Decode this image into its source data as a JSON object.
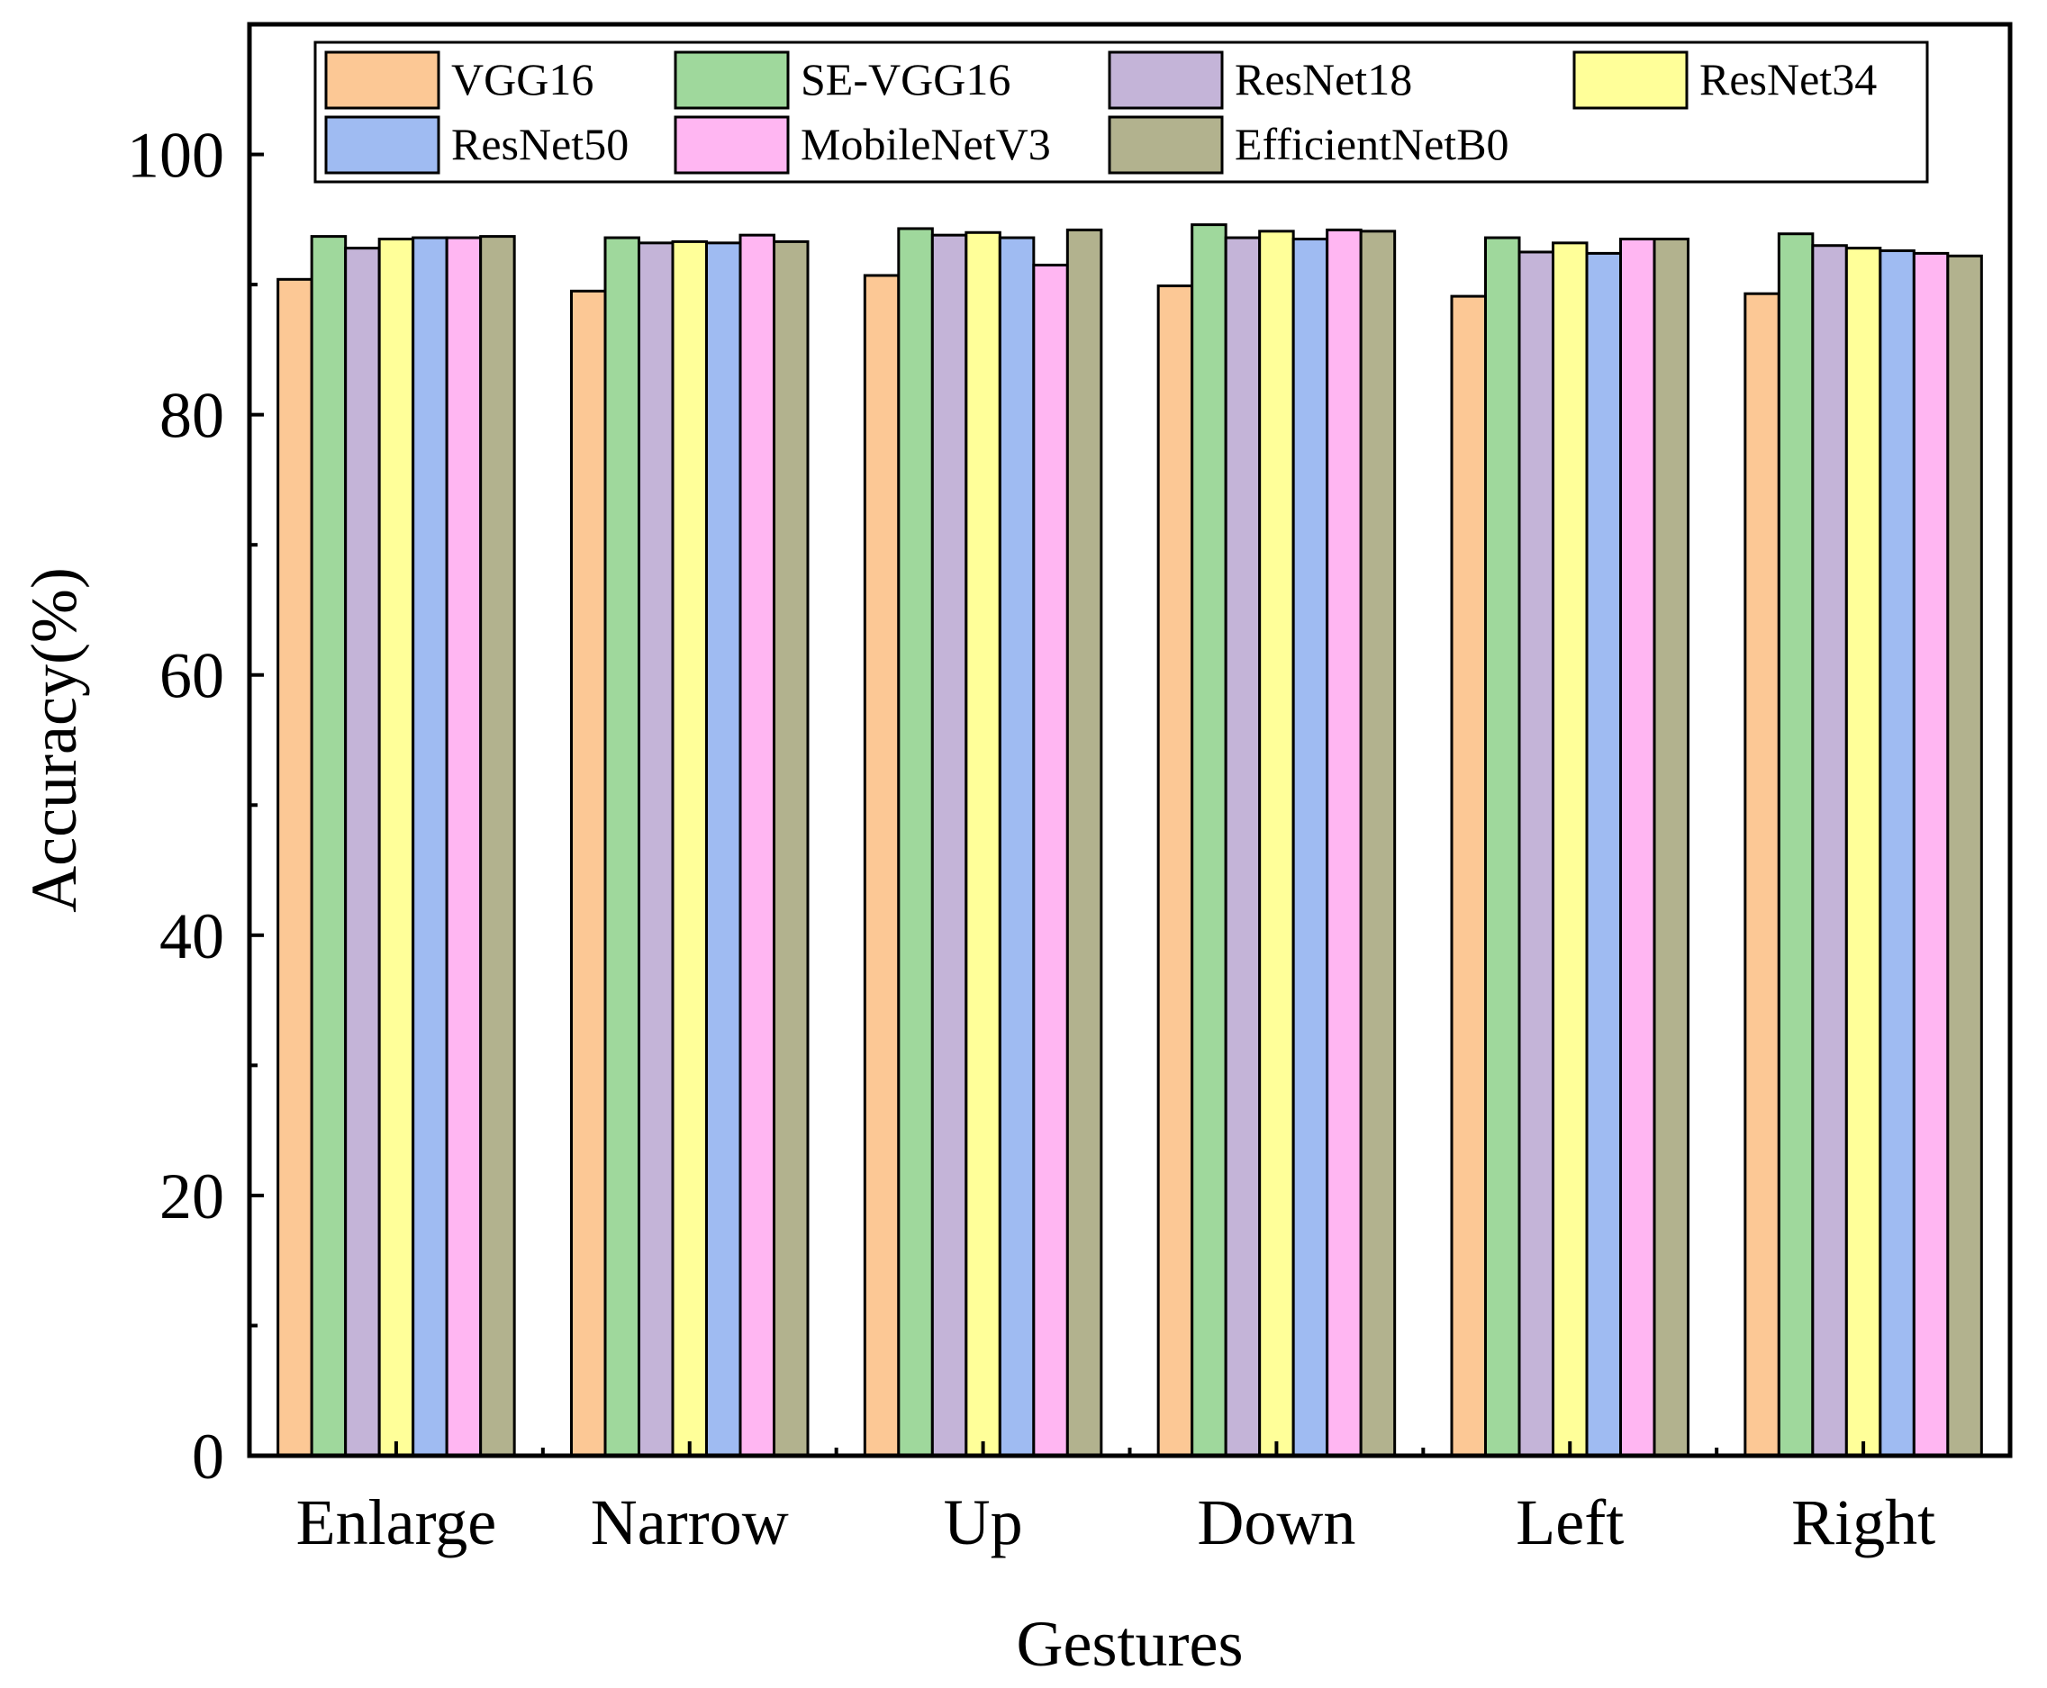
{
  "chart_data": {
    "type": "bar",
    "title": "",
    "xlabel": "Gestures",
    "ylabel": "Accuracy(%)",
    "ylim": [
      0,
      110
    ],
    "yticks": [
      0,
      20,
      40,
      60,
      80,
      100
    ],
    "ytick_labels": [
      "0",
      "20",
      "40",
      "60",
      "80",
      "100"
    ],
    "categories": [
      "Enlarge",
      "Narrow",
      "Up",
      "Down",
      "Left",
      "Right"
    ],
    "legend_position": "top",
    "series": [
      {
        "name": "VGG16",
        "color": "#FCC895",
        "values": [
          90.4,
          89.5,
          90.7,
          89.9,
          89.1,
          89.3
        ]
      },
      {
        "name": "SE-VGG16",
        "color": "#9FD89C",
        "values": [
          93.7,
          93.6,
          94.3,
          94.6,
          93.6,
          93.9
        ]
      },
      {
        "name": "ResNet18",
        "color": "#C4B4D8",
        "values": [
          92.8,
          93.2,
          93.8,
          93.6,
          92.5,
          93.0
        ]
      },
      {
        "name": "ResNet34",
        "color": "#FFFF99",
        "values": [
          93.5,
          93.3,
          94.0,
          94.1,
          93.2,
          92.8
        ]
      },
      {
        "name": "ResNet50",
        "color": "#9FBBF2",
        "values": [
          93.6,
          93.2,
          93.6,
          93.5,
          92.4,
          92.6
        ]
      },
      {
        "name": "MobileNetV3",
        "color": "#FFB6F2",
        "values": [
          93.6,
          93.8,
          91.5,
          94.2,
          93.5,
          92.4
        ]
      },
      {
        "name": "EfficientNetB0",
        "color": "#B2B28E",
        "values": [
          93.7,
          93.3,
          94.2,
          94.1,
          93.5,
          92.2
        ]
      }
    ]
  }
}
